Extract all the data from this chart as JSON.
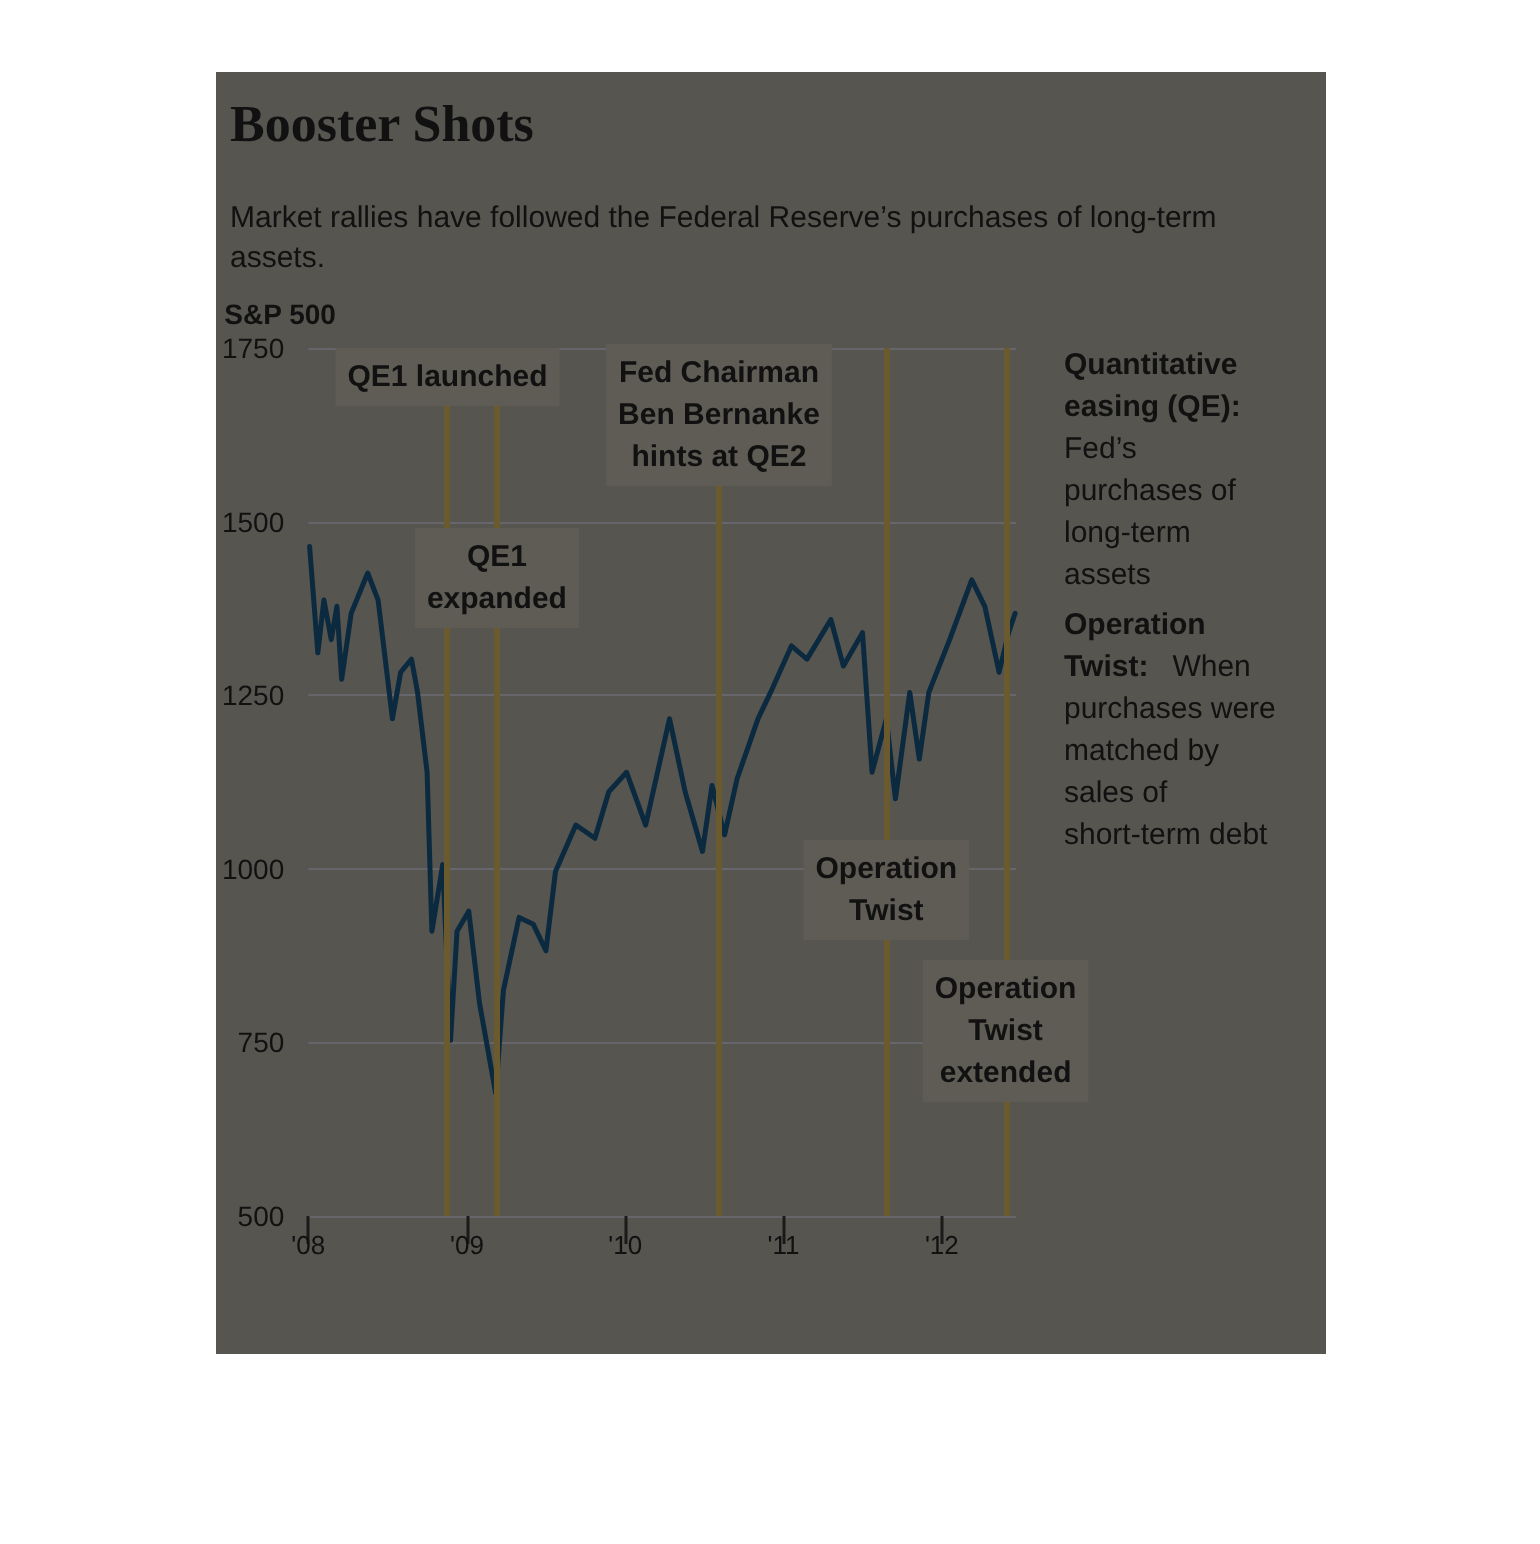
{
  "chart_data": {
    "type": "line",
    "title": "Booster Shots",
    "subtitle": "Market rallies have followed the Federal Reserve’s purchases of long-term assets.",
    "ylabel": "S&P 500",
    "x": [
      "2008-01-04",
      "2008-01-23",
      "2008-02-06",
      "2008-02-23",
      "2008-03-07",
      "2008-03-18",
      "2008-04-09",
      "2008-05-17",
      "2008-06-10",
      "2008-07-13",
      "2008-08-01",
      "2008-08-26",
      "2008-09-09",
      "2008-10-01",
      "2008-10-12",
      "2008-11-06",
      "2008-11-24",
      "2008-12-09",
      "2009-01-05",
      "2009-01-30",
      "2009-03-08",
      "2009-03-26",
      "2009-05-01",
      "2009-06-03",
      "2009-07-02",
      "2009-07-24",
      "2009-09-09",
      "2009-10-23",
      "2009-11-24",
      "2010-01-04",
      "2010-02-17",
      "2010-04-13",
      "2010-05-19",
      "2010-06-28",
      "2010-07-20",
      "2010-08-18",
      "2010-09-16",
      "2010-11-03",
      "2010-12-02",
      "2011-01-19",
      "2011-02-24",
      "2011-04-20",
      "2011-05-19",
      "2011-07-02",
      "2011-07-24",
      "2011-08-26",
      "2011-09-16",
      "2011-10-19",
      "2011-11-10",
      "2011-12-02",
      "2012-01-19",
      "2012-03-10",
      "2012-04-09",
      "2012-05-12",
      "2012-06-03",
      "2012-06-18"
    ],
    "series": [
      {
        "color": "#0b2a40",
        "values": [
          1464,
          1311,
          1387,
          1330,
          1378,
          1273,
          1368,
          1426,
          1387,
          1216,
          1283,
          1302,
          1254,
          1139,
          910,
          1006,
          753,
          910,
          939,
          806,
          677,
          825,
          930,
          920,
          882,
          996,
          1063,
          1044,
          1111,
          1139,
          1063,
          1216,
          1111,
          1025,
          1120,
          1049,
          1130,
          1216,
          1254,
          1321,
          1302,
          1359,
          1292,
          1340,
          1139,
          1216,
          1101,
          1254,
          1158,
          1254,
          1330,
          1416,
          1378,
          1283,
          1340,
          1368
        ]
      }
    ],
    "xlim": [
      "2008-01-01",
      "2012-06-20"
    ],
    "xticks": [
      {
        "value": "2008-01-01",
        "label": "'08"
      },
      {
        "value": "2009-01-01",
        "label": "'09"
      },
      {
        "value": "2010-01-01",
        "label": "'10"
      },
      {
        "value": "2011-01-01",
        "label": "'11"
      },
      {
        "value": "2012-01-01",
        "label": "'12"
      }
    ],
    "ylim": [
      500,
      1750
    ],
    "yticks": [
      500,
      750,
      1000,
      1250,
      1500,
      1750
    ],
    "grid": "y",
    "marker": "none",
    "line_style": "solid",
    "ref_lines": [
      {
        "axis": "x",
        "value": "2008-11-17",
        "label": "QE1 launched",
        "color": "#6b5a2e"
      },
      {
        "axis": "x",
        "value": "2009-03-11",
        "label": "QE1\nexpanded",
        "color": "#6b5a2e"
      },
      {
        "axis": "x",
        "value": "2010-08-05",
        "label": "Fed Chairman\nBen Bernanke\nhints at QE2",
        "color": "#6b5a2e"
      },
      {
        "axis": "x",
        "value": "2011-08-26",
        "label": "Operation\nTwist",
        "color": "#6b5a2e"
      },
      {
        "axis": "x",
        "value": "2012-05-27",
        "label": "Operation\nTwist\nextended",
        "color": "#6b5a2e"
      }
    ],
    "annotations": [
      "Quantitative easing (QE): Fed’s purchases of long-term assets",
      "Operation Twist: When purchases were matched by sales of short-term debt"
    ]
  }
}
